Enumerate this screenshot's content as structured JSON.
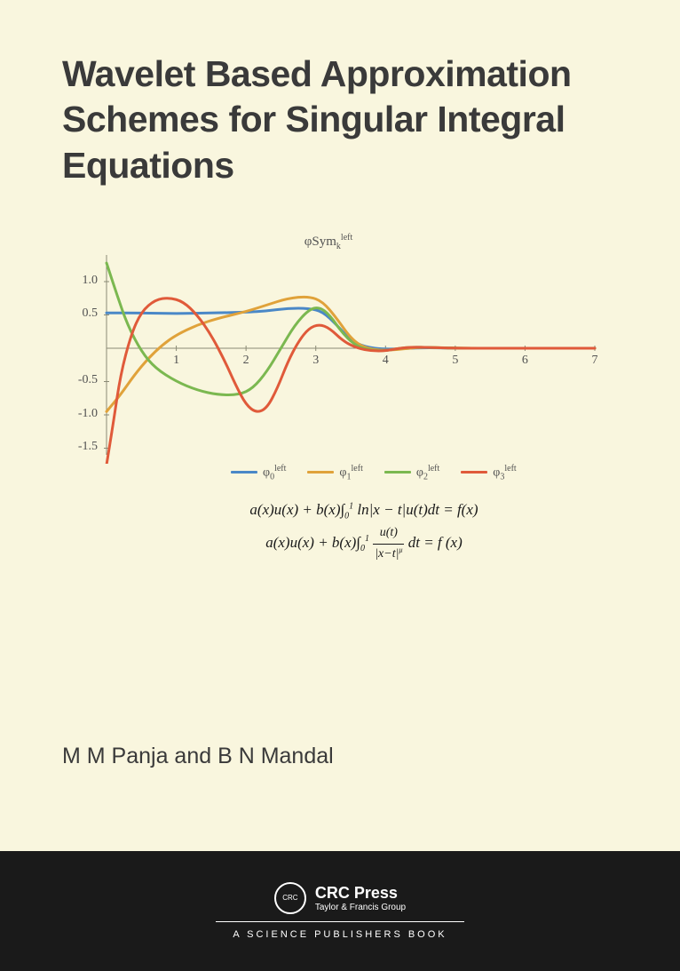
{
  "title": "Wavelet Based Approximation Schemes for Singular Integral Equations",
  "authors": "M M Panja and B N Mandal",
  "chart": {
    "type": "line",
    "title_html": "φSym<span class='sub'>k</span><span class='sup'>left</span>",
    "background_color": "#f9f6de",
    "axis_color": "#8a8a75",
    "xlim": [
      0,
      7
    ],
    "ylim": [
      -1.6,
      1.4
    ],
    "xticks": [
      1,
      2,
      3,
      4,
      5,
      6,
      7
    ],
    "yticks": [
      -1.5,
      -1.0,
      -0.5,
      0.5,
      1.0
    ],
    "series": [
      {
        "name": "phi0",
        "label_html": "φ<span class='sub'>0</span><span class='sup'>left</span>",
        "color": "#4a88c7",
        "line_width": 3,
        "points": [
          [
            0,
            0.53
          ],
          [
            0.5,
            0.53
          ],
          [
            1,
            0.52
          ],
          [
            1.5,
            0.53
          ],
          [
            2,
            0.54
          ],
          [
            2.3,
            0.56
          ],
          [
            2.6,
            0.6
          ],
          [
            2.9,
            0.6
          ],
          [
            3.1,
            0.55
          ],
          [
            3.3,
            0.35
          ],
          [
            3.5,
            0.12
          ],
          [
            3.7,
            0.02
          ],
          [
            4,
            -0.02
          ],
          [
            4.5,
            0.01
          ],
          [
            5,
            0
          ],
          [
            6,
            0
          ],
          [
            7,
            0
          ]
        ]
      },
      {
        "name": "phi1",
        "label_html": "φ<span class='sub'>1</span><span class='sup'>left</span>",
        "color": "#e0a23a",
        "line_width": 3,
        "points": [
          [
            0,
            -0.95
          ],
          [
            0.2,
            -0.7
          ],
          [
            0.4,
            -0.4
          ],
          [
            0.6,
            -0.15
          ],
          [
            0.8,
            0.05
          ],
          [
            1,
            0.2
          ],
          [
            1.3,
            0.35
          ],
          [
            1.6,
            0.45
          ],
          [
            2,
            0.55
          ],
          [
            2.3,
            0.65
          ],
          [
            2.6,
            0.75
          ],
          [
            2.9,
            0.78
          ],
          [
            3.1,
            0.7
          ],
          [
            3.3,
            0.45
          ],
          [
            3.5,
            0.15
          ],
          [
            3.7,
            0.0
          ],
          [
            4,
            -0.04
          ],
          [
            4.5,
            0.02
          ],
          [
            5,
            0
          ],
          [
            6,
            0
          ],
          [
            7,
            0
          ]
        ]
      },
      {
        "name": "phi2",
        "label_html": "φ<span class='sub'>2</span><span class='sup'>left</span>",
        "color": "#7bb850",
        "line_width": 3,
        "points": [
          [
            0,
            1.28
          ],
          [
            0.15,
            0.8
          ],
          [
            0.3,
            0.35
          ],
          [
            0.5,
            -0.05
          ],
          [
            0.7,
            -0.3
          ],
          [
            1,
            -0.5
          ],
          [
            1.3,
            -0.63
          ],
          [
            1.6,
            -0.7
          ],
          [
            1.9,
            -0.7
          ],
          [
            2.1,
            -0.6
          ],
          [
            2.3,
            -0.35
          ],
          [
            2.5,
            0.0
          ],
          [
            2.7,
            0.35
          ],
          [
            2.9,
            0.58
          ],
          [
            3.05,
            0.62
          ],
          [
            3.2,
            0.5
          ],
          [
            3.4,
            0.2
          ],
          [
            3.6,
            0.02
          ],
          [
            3.8,
            -0.03
          ],
          [
            4,
            -0.04
          ],
          [
            4.3,
            0.02
          ],
          [
            4.7,
            0.01
          ],
          [
            5,
            0
          ],
          [
            6,
            0
          ],
          [
            7,
            0
          ]
        ]
      },
      {
        "name": "phi3",
        "label_html": "φ<span class='sub'>3</span><span class='sup'>left</span>",
        "color": "#e05a3a",
        "line_width": 3,
        "points": [
          [
            0,
            -1.75
          ],
          [
            0.1,
            -1.1
          ],
          [
            0.2,
            -0.4
          ],
          [
            0.35,
            0.2
          ],
          [
            0.5,
            0.55
          ],
          [
            0.7,
            0.73
          ],
          [
            0.9,
            0.76
          ],
          [
            1.1,
            0.7
          ],
          [
            1.3,
            0.5
          ],
          [
            1.5,
            0.2
          ],
          [
            1.7,
            -0.2
          ],
          [
            1.85,
            -0.55
          ],
          [
            2.0,
            -0.85
          ],
          [
            2.15,
            -0.97
          ],
          [
            2.3,
            -0.9
          ],
          [
            2.45,
            -0.6
          ],
          [
            2.6,
            -0.2
          ],
          [
            2.75,
            0.1
          ],
          [
            2.9,
            0.3
          ],
          [
            3.05,
            0.36
          ],
          [
            3.2,
            0.3
          ],
          [
            3.4,
            0.1
          ],
          [
            3.6,
            0.0
          ],
          [
            3.8,
            -0.04
          ],
          [
            4,
            -0.04
          ],
          [
            4.3,
            0.02
          ],
          [
            4.7,
            0.01
          ],
          [
            5,
            0
          ],
          [
            6,
            0
          ],
          [
            7,
            0
          ]
        ]
      }
    ]
  },
  "equations": {
    "line1_html": "a(x)u(x) + b(x)∫<span class='sub'>0</span><span class='sup'>1</span> ln|x − t|u(t)dt = f(x)",
    "line2_html": "a(x)u(x) + b(x)∫<span class='sub'>0</span><span class='sup'>1</span> <span style='font-style:italic'><span style='display:inline-block;text-align:center;vertical-align:middle;font-size:14px'><span style='display:block;border-bottom:1px solid #1a1a1a;padding:0 2px'>u(t)</span><span style='display:block;padding:0 2px'>|x−t|<sup style='font-size:8px'>μ</sup></span></span></span> dt = f (x)"
  },
  "publisher": {
    "name": "CRC Press",
    "group": "Taylor & Francis Group",
    "tagline": "A SCIENCE PUBLISHERS BOOK",
    "logo_text": "CRC"
  },
  "colors": {
    "cover_bg": "#f9f6de",
    "footer_bg": "#1a1a1a",
    "title_color": "#3a3a3a"
  }
}
